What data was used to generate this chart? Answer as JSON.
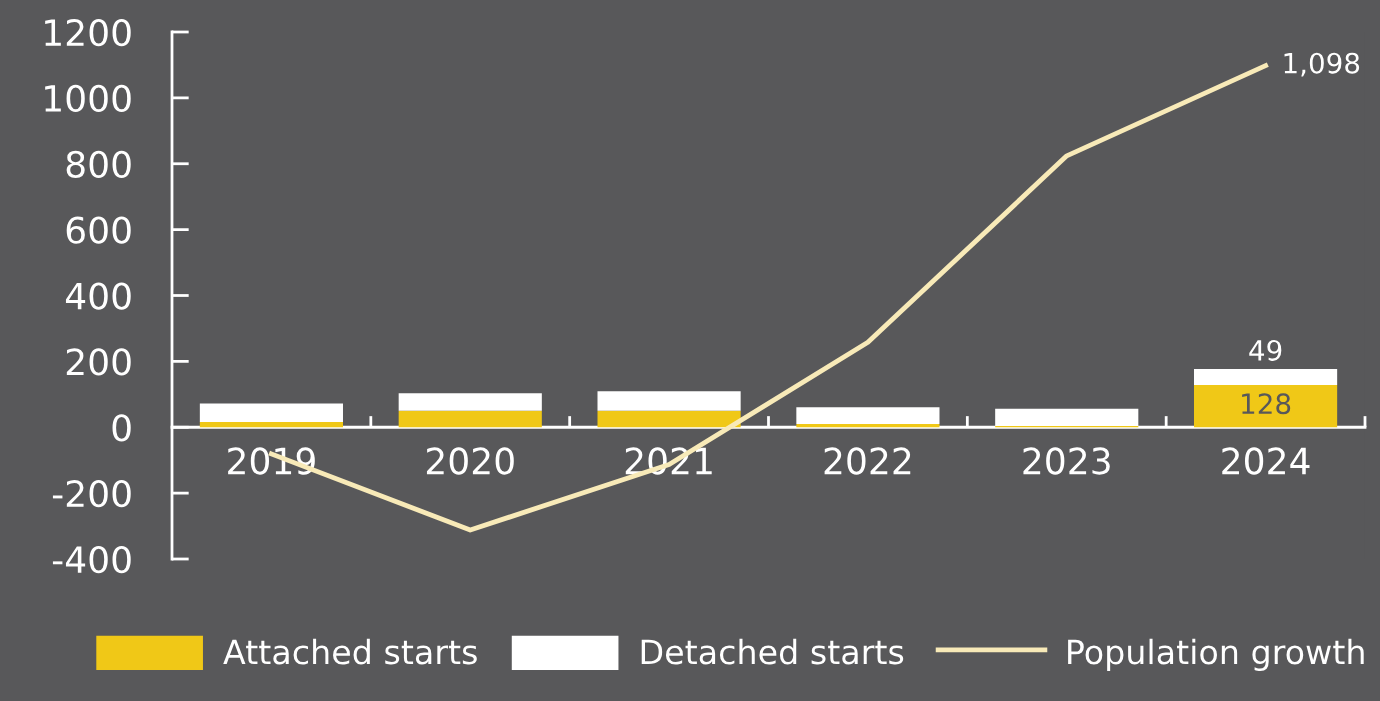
{
  "chart_data": {
    "type": "bar",
    "stacked": true,
    "categories": [
      "2019",
      "2020",
      "2021",
      "2022",
      "2023",
      "2024"
    ],
    "series": [
      {
        "name": "Attached starts",
        "color": "#f0c817",
        "values": [
          16,
          50,
          50,
          10,
          4,
          128
        ],
        "value_labels": [
          null,
          null,
          null,
          null,
          null,
          "128"
        ]
      },
      {
        "name": "Detached starts",
        "color": "#ffffff",
        "values": [
          56,
          53,
          59,
          51,
          52,
          49
        ],
        "value_labels": [
          null,
          null,
          null,
          null,
          null,
          "49"
        ]
      },
      {
        "name": "Population growth",
        "type": "line",
        "color": "#f8eab8",
        "values": [
          -81,
          -312,
          -113,
          258,
          824,
          1098
        ],
        "value_labels": [
          null,
          null,
          null,
          null,
          null,
          "1,098"
        ]
      }
    ],
    "ylim": [
      -400,
      1200
    ],
    "yticks": [
      -400,
      -200,
      0,
      200,
      400,
      600,
      800,
      1000,
      1200
    ],
    "grid": false,
    "legend": "bottom"
  }
}
